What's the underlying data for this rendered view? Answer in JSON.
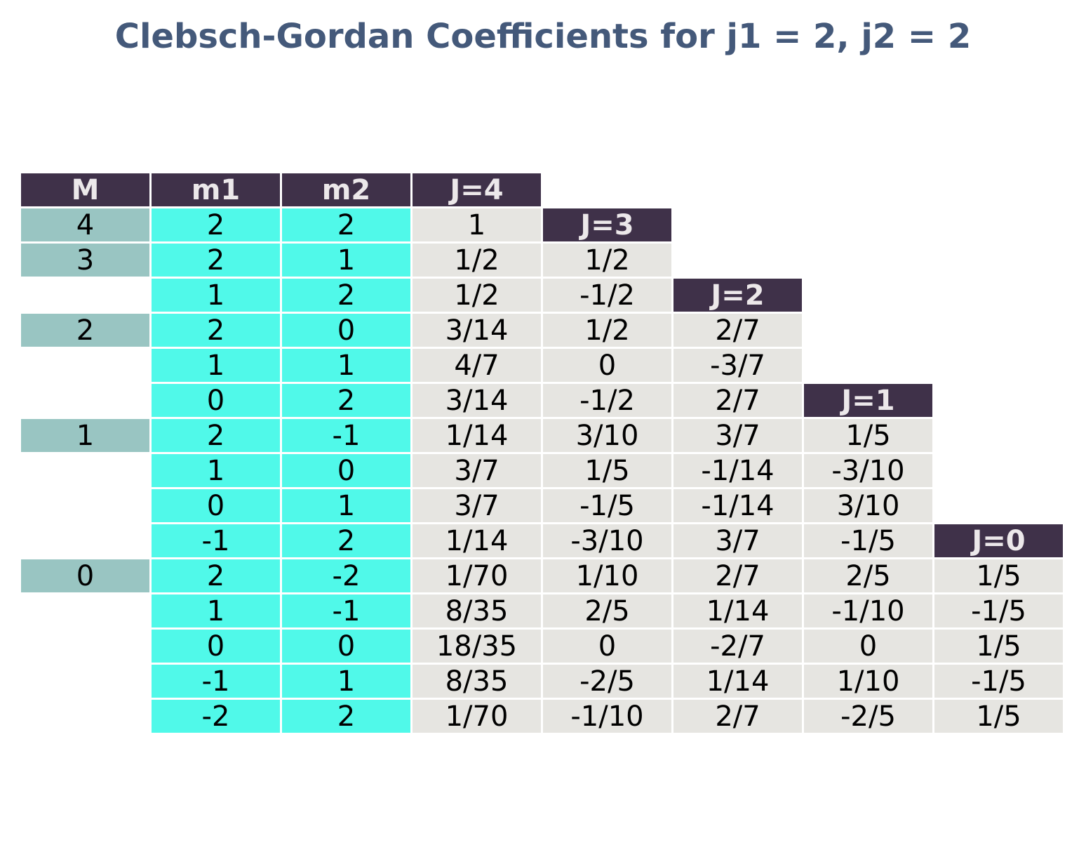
{
  "title": "Clebsch-Gordan Coefficients for j1 = 2, j2 = 2",
  "chart_data": {
    "type": "table",
    "title": "Clebsch-Gordan Coefficients for j1 = 2, j2 = 2",
    "columns": [
      "M",
      "m1",
      "m2"
    ],
    "J_headers": [
      "J=4",
      "J=3",
      "J=2",
      "J=1",
      "J=0"
    ],
    "rows": [
      {
        "M": "4",
        "m1": "2",
        "m2": "2",
        "coeffs": [
          "1"
        ]
      },
      {
        "M": "3",
        "m1": "2",
        "m2": "1",
        "coeffs": [
          "1/2",
          "1/2"
        ]
      },
      {
        "M": "",
        "m1": "1",
        "m2": "2",
        "coeffs": [
          "1/2",
          "-1/2"
        ]
      },
      {
        "M": "2",
        "m1": "2",
        "m2": "0",
        "coeffs": [
          "3/14",
          "1/2",
          "2/7"
        ]
      },
      {
        "M": "",
        "m1": "1",
        "m2": "1",
        "coeffs": [
          "4/7",
          "0",
          "-3/7"
        ]
      },
      {
        "M": "",
        "m1": "0",
        "m2": "2",
        "coeffs": [
          "3/14",
          "-1/2",
          "2/7"
        ]
      },
      {
        "M": "1",
        "m1": "2",
        "m2": "-1",
        "coeffs": [
          "1/14",
          "3/10",
          "3/7",
          "1/5"
        ]
      },
      {
        "M": "",
        "m1": "1",
        "m2": "0",
        "coeffs": [
          "3/7",
          "1/5",
          "-1/14",
          "-3/10"
        ]
      },
      {
        "M": "",
        "m1": "0",
        "m2": "1",
        "coeffs": [
          "3/7",
          "-1/5",
          "-1/14",
          "3/10"
        ]
      },
      {
        "M": "",
        "m1": "-1",
        "m2": "2",
        "coeffs": [
          "1/14",
          "-3/10",
          "3/7",
          "-1/5"
        ]
      },
      {
        "M": "0",
        "m1": "2",
        "m2": "-2",
        "coeffs": [
          "1/70",
          "1/10",
          "2/7",
          "2/5",
          "1/5"
        ]
      },
      {
        "M": "",
        "m1": "1",
        "m2": "-1",
        "coeffs": [
          "8/35",
          "2/5",
          "1/14",
          "-1/10",
          "-1/5"
        ]
      },
      {
        "M": "",
        "m1": "0",
        "m2": "0",
        "coeffs": [
          "18/35",
          "0",
          "-2/7",
          "0",
          "1/5"
        ]
      },
      {
        "M": "",
        "m1": "-1",
        "m2": "1",
        "coeffs": [
          "8/35",
          "-2/5",
          "1/14",
          "1/10",
          "-1/5"
        ]
      },
      {
        "M": "",
        "m1": "-2",
        "m2": "2",
        "coeffs": [
          "1/70",
          "-1/10",
          "2/7",
          "-2/5",
          "1/5"
        ]
      }
    ],
    "colors": {
      "title": "#44597a",
      "header_bg": "#3f3149",
      "header_text": "#ece8ea",
      "M_bg": "#99c5c2",
      "m_bg": "#50f9e9",
      "coeff_bg": "#e6e5e1"
    }
  }
}
